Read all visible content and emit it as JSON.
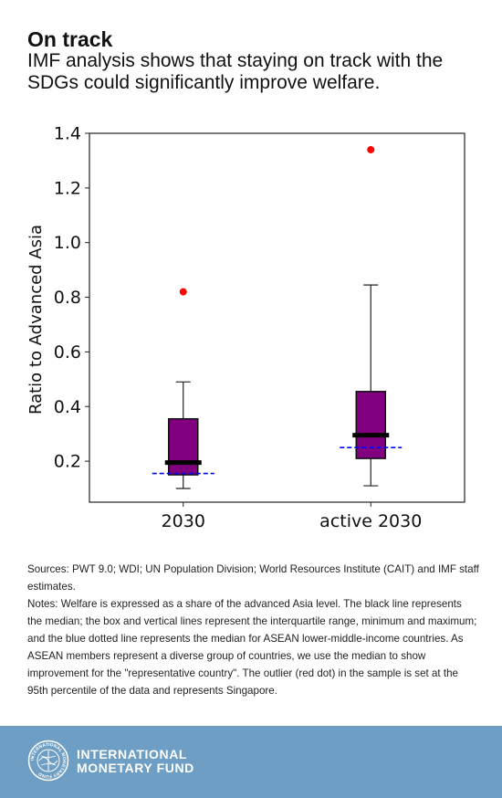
{
  "header": {
    "title": "On track",
    "subtitle": "IMF analysis shows that staying on track with the SDGs could significantly improve welfare."
  },
  "chart_data": {
    "type": "boxplot",
    "title": "",
    "xlabel": "",
    "ylabel": "Ratio to Advanced Asia",
    "ylim": [
      0.05,
      1.4
    ],
    "yticks": [
      0.2,
      0.4,
      0.6,
      0.8,
      1.0,
      1.2,
      1.4
    ],
    "ytick_labels": [
      "0.2",
      "0.4",
      "0.6",
      "0.8",
      "1.0",
      "1.2",
      "1.4"
    ],
    "categories": [
      "2030",
      "active 2030"
    ],
    "boxes": [
      {
        "category": "2030",
        "min": 0.1,
        "q1": 0.15,
        "median": 0.195,
        "q3": 0.355,
        "max": 0.49,
        "outlier": 0.82,
        "asean_median": 0.155
      },
      {
        "category": "active 2030",
        "min": 0.11,
        "q1": 0.21,
        "median": 0.295,
        "q3": 0.455,
        "max": 0.845,
        "outlier": 1.34,
        "asean_median": 0.25
      }
    ],
    "colors": {
      "box_fill": "#800080",
      "median_line": "#000000",
      "outlier": "#ff0000",
      "asean_median_line": "#0000ff"
    },
    "grid": false
  },
  "notes": {
    "sources": "Sources: PWT 9.0; WDI; UN Population Division; World Resources Institute (CAIT) and IMF staff estimates.",
    "notes": "Notes: Welfare is expressed as a share of the advanced Asia level. The black line represents the median; the box and vertical lines represent the interquartile range, minimum and maximum; and the blue dotted line represents the median for ASEAN lower-middle-income countries. As ASEAN members represent a diverse group of countries, we use the median to show improvement for the \"representative country\". The outlier (red dot) in the sample is set at the 95th percentile of the data and represents Singapore."
  },
  "footer": {
    "line1": "INTERNATIONAL",
    "line2": "MONETARY FUND",
    "seal_text": "INTERNATIONAL MONETARY FUND",
    "background": "#6e9ec3"
  }
}
